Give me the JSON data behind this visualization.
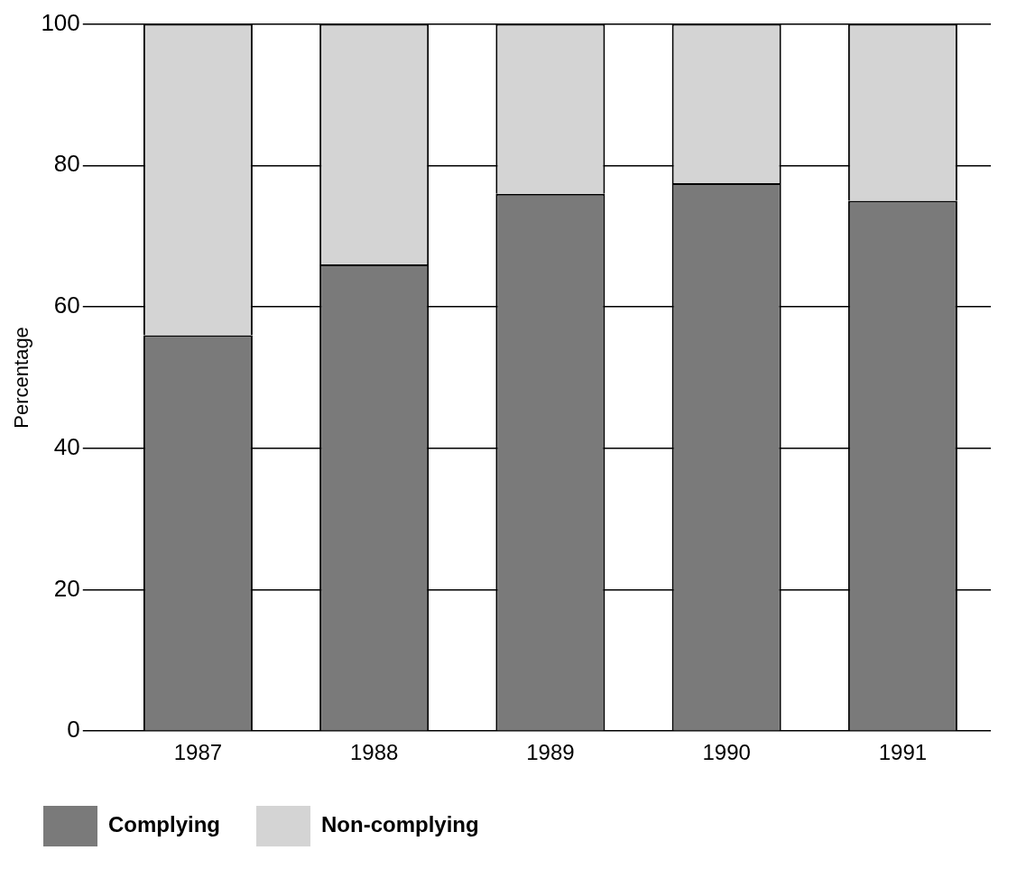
{
  "chart_data": {
    "type": "bar",
    "ylabel": "Percentage",
    "categories": [
      "1987",
      "1988",
      "1989",
      "1990",
      "1991"
    ],
    "stacked": true,
    "series": [
      {
        "name": "Complying",
        "color": "#7a7a7a",
        "values": [
          56,
          66,
          76,
          77.5,
          75
        ]
      },
      {
        "name": "Non-complying",
        "color": "#d4d4d4",
        "values": [
          44,
          34,
          24,
          22.5,
          25
        ]
      }
    ],
    "ylim": [
      0,
      100
    ],
    "yticks": [
      0,
      20,
      40,
      60,
      80,
      100
    ],
    "grid": "y",
    "legend": "bottom"
  }
}
